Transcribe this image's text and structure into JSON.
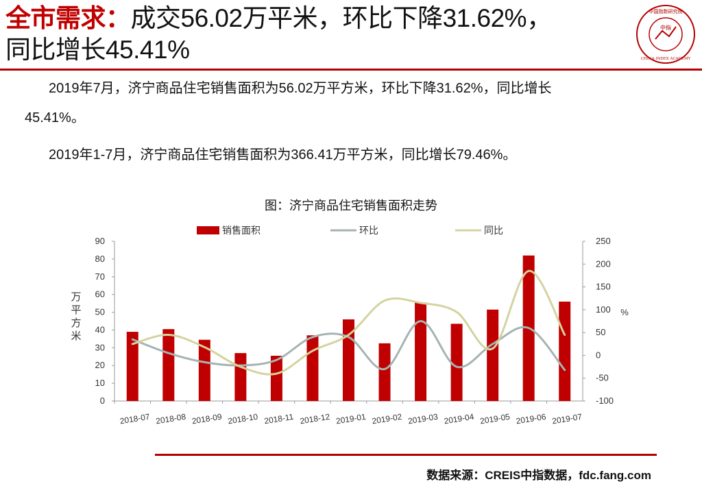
{
  "header": {
    "title_highlight": "全市需求：",
    "title_line1_rest": "成交56.02万平米，环比下降31.62%，",
    "title_line2": "同比增长45.41%"
  },
  "logo": {
    "icon": "china-index-academy-seal-icon",
    "text_top": "中国指数研究院",
    "text_center": "中指",
    "text_bottom": "CHINA INDEX ACADEMY"
  },
  "body": {
    "para1_line1": "2019年7月，济宁商品住宅销售面积为56.02万平方米，环比下降31.62%，同比增长",
    "para1_line2": "45.41%。",
    "para2": "2019年1-7月，济宁商品住宅销售面积为366.41万平方米，同比增长79.46%。"
  },
  "chart_data": {
    "type": "bar",
    "title": "图：济宁商品住宅销售面积走势",
    "categories": [
      "2018-07",
      "2018-08",
      "2018-09",
      "2018-10",
      "2018-11",
      "2018-12",
      "2019-01",
      "2019-02",
      "2019-03",
      "2019-04",
      "2019-05",
      "2019-06",
      "2019-07"
    ],
    "series": [
      {
        "name": "销售面积",
        "type": "bar",
        "axis": "left",
        "color": "#c00000",
        "values": [
          39,
          40.5,
          34.5,
          27,
          25.5,
          37,
          46,
          32.5,
          55.5,
          43.5,
          51.5,
          82,
          56
        ]
      },
      {
        "name": "环比",
        "type": "line",
        "axis": "right",
        "color": "#a6b3b3",
        "values": [
          35,
          5,
          -15,
          -22,
          -10,
          40,
          40,
          -30,
          75,
          -25,
          25,
          60,
          -32
        ]
      },
      {
        "name": "同比",
        "type": "line",
        "axis": "right",
        "color": "#d3d3a0",
        "values": [
          25,
          45,
          18,
          -25,
          -40,
          10,
          45,
          120,
          115,
          95,
          15,
          185,
          45
        ]
      }
    ],
    "ylabel": "万平方米",
    "y2label": "%",
    "ylim": [
      0,
      90
    ],
    "yticks": [
      "0",
      "10",
      "20",
      "30",
      "40",
      "50",
      "60",
      "70",
      "80",
      "90"
    ],
    "y2lim": [
      -100,
      250
    ],
    "y2ticks": [
      "-100",
      "-50",
      "0",
      "50",
      "100",
      "150",
      "200",
      "250"
    ],
    "grid": false,
    "legend_position": "top-center"
  },
  "footer": {
    "source": "数据来源：CREIS中指数据，fdc.fang.com"
  }
}
